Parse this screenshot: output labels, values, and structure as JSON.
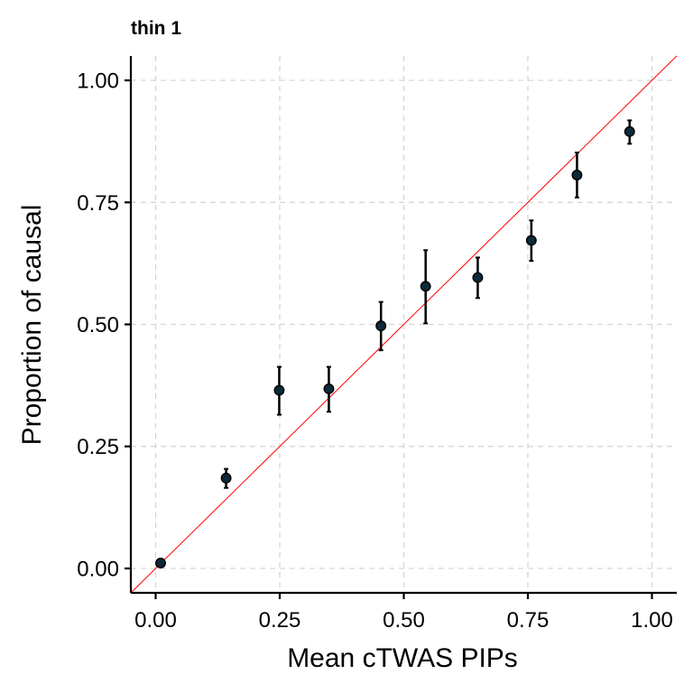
{
  "chart_data": {
    "type": "scatter",
    "title": "thin 1",
    "xlabel": "Mean cTWAS PIPs",
    "ylabel": "Proportion of causal",
    "xlim": [
      -0.05,
      1.05
    ],
    "ylim": [
      -0.05,
      1.05
    ],
    "xticks": [
      0.0,
      0.25,
      0.5,
      0.75,
      1.0
    ],
    "yticks": [
      0.0,
      0.25,
      0.5,
      0.75,
      1.0
    ],
    "xtick_labels": [
      "0.00",
      "0.25",
      "0.50",
      "0.75",
      "1.00"
    ],
    "ytick_labels": [
      "0.00",
      "0.25",
      "0.50",
      "0.75",
      "1.00"
    ],
    "grid": true,
    "reference_line": {
      "slope": 1,
      "intercept": 0,
      "color": "#ff0000"
    },
    "point_color": "#0b2a3a",
    "points": [
      {
        "x": 0.01,
        "y": 0.011,
        "ymin": 0.011,
        "ymax": 0.011
      },
      {
        "x": 0.142,
        "y": 0.185,
        "ymin": 0.165,
        "ymax": 0.204
      },
      {
        "x": 0.249,
        "y": 0.365,
        "ymin": 0.315,
        "ymax": 0.413
      },
      {
        "x": 0.349,
        "y": 0.368,
        "ymin": 0.321,
        "ymax": 0.413
      },
      {
        "x": 0.454,
        "y": 0.497,
        "ymin": 0.447,
        "ymax": 0.546
      },
      {
        "x": 0.544,
        "y": 0.578,
        "ymin": 0.502,
        "ymax": 0.652
      },
      {
        "x": 0.649,
        "y": 0.596,
        "ymin": 0.554,
        "ymax": 0.637
      },
      {
        "x": 0.757,
        "y": 0.672,
        "ymin": 0.63,
        "ymax": 0.713
      },
      {
        "x": 0.849,
        "y": 0.806,
        "ymin": 0.76,
        "ymax": 0.852
      },
      {
        "x": 0.955,
        "y": 0.895,
        "ymin": 0.87,
        "ymax": 0.918
      }
    ]
  }
}
